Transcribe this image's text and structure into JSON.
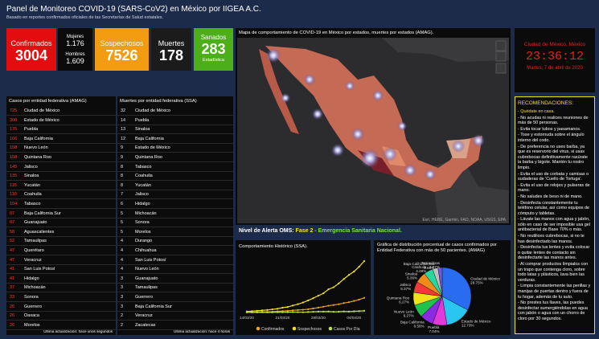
{
  "header": {
    "title": "Panel de Monitoreo COVID-19 (SARS-CoV2) en México por IIGEA A.C.",
    "subtitle": "Basado en reportes confirmados oficiales de las Secretarías de Salud estatales."
  },
  "tiles": {
    "confirmados": {
      "label": "Confirmados",
      "value": "3004"
    },
    "mujeres": {
      "label": "Mujeres",
      "value": "1.176"
    },
    "hombres": {
      "label": "Hombres",
      "value": "1.609"
    },
    "sospechosos": {
      "label": "Sospechosos",
      "value": "7526"
    },
    "muertes": {
      "label": "Muertes",
      "value": "178"
    },
    "sanados": {
      "label": "Sanados",
      "value": "283",
      "note": "Estadística"
    }
  },
  "map": {
    "title": "Mapa de comportamiento de COVID-19 en México por estados, muertes por estados (AMAG).",
    "attribution": "Esri, HERE, Garmin, FAO, NOAA, USGS, EPA"
  },
  "clock": {
    "place": "Ciudad de México, México",
    "time": "23:36:12",
    "date": "Martes, 7 de abril de 2020"
  },
  "cases_list": {
    "title": "Casos por entidad federativa (AMAG)",
    "footer": "Última actualización: hace unos segundos",
    "rows": [
      {
        "value": 725,
        "state": "Ciudad de México"
      },
      {
        "value": 300,
        "state": "Estado de México"
      },
      {
        "value": 176,
        "state": "Puebla"
      },
      {
        "value": 166,
        "state": "Baja California"
      },
      {
        "value": 158,
        "state": "Nuevo León"
      },
      {
        "value": 158,
        "state": "Quintana Roo"
      },
      {
        "value": 145,
        "state": "Jalisco"
      },
      {
        "value": 135,
        "state": "Sinaloa"
      },
      {
        "value": 115,
        "state": "Yucatán"
      },
      {
        "value": 110,
        "state": "Coahuila"
      },
      {
        "value": 104,
        "state": "Tabasco"
      },
      {
        "value": 67,
        "state": "Baja California Sur"
      },
      {
        "value": 67,
        "state": "Guanajuato"
      },
      {
        "value": 58,
        "state": "Aguascalientes"
      },
      {
        "value": 52,
        "state": "Tamaulipas"
      },
      {
        "value": 47,
        "state": "Querétaro"
      },
      {
        "value": 47,
        "state": "Veracruz"
      },
      {
        "value": 41,
        "state": "San Luis Potosí"
      },
      {
        "value": 41,
        "state": "Hidalgo"
      },
      {
        "value": 37,
        "state": "Michoacán"
      },
      {
        "value": 33,
        "state": "Sonora"
      },
      {
        "value": 26,
        "state": "Guerrero"
      },
      {
        "value": 26,
        "state": "Oaxaca"
      },
      {
        "value": 26,
        "state": "Morelos"
      }
    ]
  },
  "deaths_list": {
    "title": "Muertes por entidad federativa (SSA)",
    "footer": "Última actualización: hace 4 horas",
    "rows": [
      {
        "value": 32,
        "state": "Ciudad de México"
      },
      {
        "value": 14,
        "state": "Puebla"
      },
      {
        "value": 13,
        "state": "Sinaloa"
      },
      {
        "value": 12,
        "state": "Baja California"
      },
      {
        "value": 9,
        "state": "Estado de México"
      },
      {
        "value": 9,
        "state": "Quintana Roo"
      },
      {
        "value": 8,
        "state": "Tabasco"
      },
      {
        "value": 8,
        "state": "Coahuila"
      },
      {
        "value": 8,
        "state": "Yucatán"
      },
      {
        "value": 7,
        "state": "Jalisco"
      },
      {
        "value": 6,
        "state": "Hidalgo"
      },
      {
        "value": 5,
        "state": "Michoacán"
      },
      {
        "value": 5,
        "state": "Sonora"
      },
      {
        "value": 5,
        "state": "Morelos"
      },
      {
        "value": 4,
        "state": "Durango"
      },
      {
        "value": 4,
        "state": "Chihuahua"
      },
      {
        "value": 4,
        "state": "San Luis Potosí"
      },
      {
        "value": 4,
        "state": "Nuevo León"
      },
      {
        "value": 3,
        "state": "Guanajuato"
      },
      {
        "value": 3,
        "state": "Tamaulipas"
      },
      {
        "value": 3,
        "state": "Guerrero"
      },
      {
        "value": 3,
        "state": "Baja California Sur"
      },
      {
        "value": 2,
        "state": "Veracruz"
      },
      {
        "value": 2,
        "state": "Zacatecas"
      }
    ]
  },
  "alert": {
    "label": "Nivel de Alerta OMS:",
    "phase": "Fase 2",
    "emergency": "- Emergencia Sanitaria Nacional."
  },
  "recommendations": {
    "title": "RECOMENDACIONES:",
    "items": [
      "- Quédate en casa.",
      "- No acudas ni realices reuniones de más de 50 personas.",
      "- Evita tocar tubos y pasamanos.",
      "- Tose y estornuda sobre el ángulo interno del codo.",
      "- De preferencia no uses barba, ya que es reservorio del virus, si usas cubrebocas definitivamente rasúrate la barba y bigote. Mantén tu rostro limpio.",
      "- Evita el uso de corbata y camisas o sudaderas de 'Cuello de Tortuga'.",
      "- Evita el uso de relojes y pulseras de mano.",
      "- No saludes de beso ni de mano.",
      "- Desinfecta constantemente tu teléfono celular, así como equipos de cómputo y tabletas.",
      "- Lávate las manos con agua y jabón, sólo en caso de ser imposible usa gel antibacterial de Base 70% o más.",
      "- No reutilices cubrebocas, si no te has desinfectado las manos.",
      "- Desinfecta tus lentes y evita colocar o quitar lentes de contacto sin desinfectarte las manos antes.",
      "- Al comprar productos límpialos con un trapo que contenga cloro, sobre todo latas y plásticos, lava bien las verduras.",
      "- Limpia constantemente las perillas y manijas de puertas dentro y fuera de tu hogar, además de tu auto.",
      "- No prestes tus llaves, las puedes desinfectar sumergiéndolas en agua con jabón o agua con un chorro de cloro por 30 segundos."
    ]
  },
  "history_chart": {
    "type": "line",
    "title": "Comportamiento Histórico (SSA).",
    "categories": [
      "14/03/20",
      null,
      null,
      null,
      null,
      null,
      null,
      "21/03/20",
      null,
      null,
      null,
      null,
      null,
      null,
      "28/03/20",
      null,
      null,
      null,
      null,
      null,
      null,
      "04/04/20",
      null,
      null
    ],
    "ylim": [
      0,
      8000
    ],
    "series": [
      {
        "name": "Confirmados",
        "color": "#f0a020",
        "values": [
          26,
          41,
          53,
          82,
          93,
          118,
          164,
          203,
          251,
          316,
          367,
          405,
          475,
          585,
          717,
          848,
          993,
          1094,
          1215,
          1378,
          1510,
          1688,
          1890,
          2143
        ]
      },
      {
        "name": "Sospechosos",
        "color": "#f2e21a",
        "values": [
          155,
          199,
          253,
          311,
          373,
          464,
          546,
          704,
          806,
          1019,
          1214,
          1457,
          1761,
          2091,
          2456,
          2810,
          3397,
          3700,
          4250,
          4900,
          5500,
          6000,
          6700,
          7526
        ]
      },
      {
        "name": "Casos Por Día",
        "color": "#b6e34a",
        "values": [
          11,
          15,
          12,
          29,
          11,
          25,
          46,
          39,
          48,
          65,
          51,
          38,
          70,
          110,
          132,
          131,
          145,
          101,
          121,
          163,
          132,
          178,
          202,
          253
        ]
      }
    ]
  },
  "pie_chart": {
    "type": "pie",
    "title": "Gráfica de distribución porcentual de casos confirmados por Entidad Federativa con más de 50 pacientes. (AMAG)",
    "categories": [
      "Ciudad de México",
      "Estado de México",
      "Puebla",
      "Baja California",
      "Nuevo León",
      "Quintana Roo",
      "Jalisco",
      "Sinaloa",
      "Coahuila",
      "Baja California Sur",
      "Tamaulipas"
    ],
    "values": [
      28.75,
      12.73,
      7.04,
      6.59,
      6.27,
      6.27,
      5.37,
      5.36,
      4.49,
      2.66,
      2.07
    ],
    "value_labels": [
      "28.75%",
      "12.73%",
      "7.04%",
      "6.59%",
      "6.27%",
      "6.27%",
      "5.37%",
      "5.36%",
      "4.49%",
      "2.66%",
      "2.07%"
    ],
    "colors": [
      "#2a6cf0",
      "#29c6f0",
      "#e13ad8",
      "#8a2be2",
      "#1fc24a",
      "#f2e21a",
      "#f03a3a",
      "#f08a1a",
      "#2ad6a0",
      "#c0c0c0",
      "#6a5acd"
    ]
  }
}
